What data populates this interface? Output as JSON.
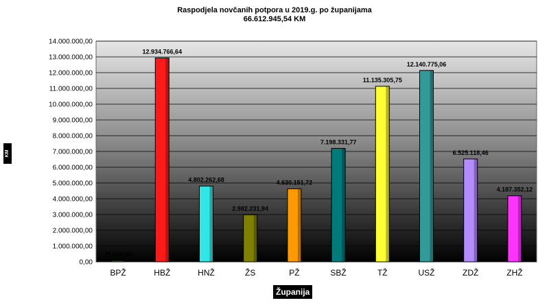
{
  "chart_data": {
    "type": "bar",
    "title": "Raspodjela novčanih potpora u 2019.g. po županijama",
    "subtitle": "66.612.945,54 KM",
    "xlabel": "Županija",
    "ylabel": "KM",
    "categories": [
      "BPŽ",
      "HBŽ",
      "HNŽ",
      "ŽS",
      "PŽ",
      "SBŽ",
      "TŽ",
      "USŽ",
      "ZDŽ",
      "ZHŽ"
    ],
    "values": [
      76649.4,
      12934766.64,
      4802262.68,
      2982231.94,
      4630151.72,
      7198331.77,
      11135305.75,
      12140775.06,
      6525118.46,
      4187352.12
    ],
    "value_labels": [
      "76.649,40",
      "12.934.766,64",
      "4.802.262,68",
      "2.982.231,94",
      "4.630.151,72",
      "7.198.331,77",
      "11.135.305,75",
      "12.140.775,06",
      "6.525.118,46",
      "4.187.352,12"
    ],
    "colors": [
      "#2e8b2e",
      "#ff1a1a",
      "#33e6e6",
      "#808000",
      "#ff9900",
      "#007a7a",
      "#ffff33",
      "#339999",
      "#b38cff",
      "#ff33ff"
    ],
    "ylim": [
      0,
      14000000
    ],
    "yticks": [
      0,
      1000000,
      2000000,
      3000000,
      4000000,
      5000000,
      6000000,
      7000000,
      8000000,
      9000000,
      10000000,
      11000000,
      12000000,
      13000000,
      14000000
    ],
    "ytick_labels": [
      "0,00",
      "1.000.000,00",
      "2.000.000,00",
      "3.000.000,00",
      "4.000.000,00",
      "5.000.000,00",
      "6.000.000,00",
      "7.000.000,00",
      "8.000.000,00",
      "9.000.000,00",
      "10.000.000,00",
      "11.000.000,00",
      "12.000.000,00",
      "13.000.000,00",
      "14.000.000,00"
    ],
    "grid": true,
    "legend": "none"
  }
}
